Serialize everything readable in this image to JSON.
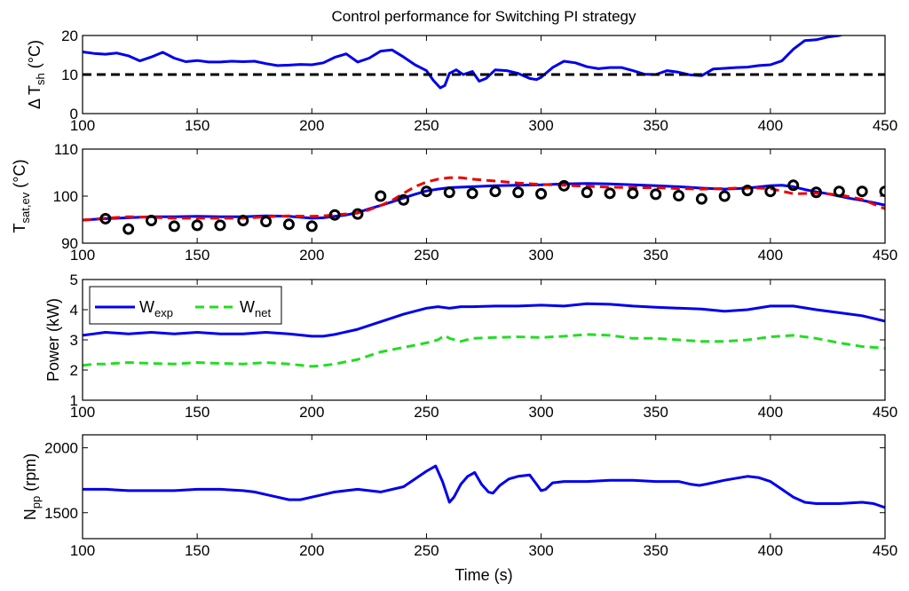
{
  "chart_data": [
    {
      "type": "line",
      "title": "Control performance for Switching PI strategy",
      "ylabel_base": "Δ T",
      "ylabel_sub": "sh",
      "ylabel_unit": " (°C)",
      "xlim": [
        100,
        450
      ],
      "ylim": [
        0,
        20
      ],
      "xticks": [
        100,
        150,
        200,
        250,
        300,
        350,
        400,
        450
      ],
      "yticks": [
        0,
        10,
        20
      ],
      "colors": {
        "series": "#0000ee",
        "reference": "#000000"
      },
      "series": [
        {
          "style": "solid",
          "x": [
            100,
            105,
            110,
            115,
            120,
            125,
            130,
            135,
            140,
            145,
            150,
            155,
            160,
            165,
            170,
            175,
            180,
            185,
            190,
            195,
            200,
            205,
            210,
            215,
            220,
            225,
            230,
            235,
            240,
            245,
            250,
            253,
            256,
            258,
            260,
            263,
            266,
            270,
            273,
            276,
            280,
            285,
            290,
            295,
            298,
            300,
            305,
            310,
            315,
            320,
            325,
            330,
            335,
            340,
            345,
            350,
            355,
            360,
            365,
            370,
            375,
            380,
            385,
            390,
            395,
            400,
            405,
            410,
            415,
            420,
            425,
            430,
            433
          ],
          "values": [
            15.8,
            15.4,
            15.2,
            15.5,
            14.8,
            13.5,
            14.5,
            15.7,
            14.2,
            13.3,
            13.6,
            13.2,
            13.2,
            13.4,
            13.3,
            13.4,
            12.8,
            12.3,
            12.4,
            12.6,
            12.5,
            13.0,
            14.4,
            15.3,
            13.2,
            14.2,
            16.0,
            16.3,
            14.5,
            12.5,
            11.0,
            8.5,
            6.6,
            7.2,
            10.3,
            11.2,
            10.0,
            10.8,
            8.3,
            9.0,
            11.2,
            11.0,
            10.3,
            9.0,
            8.7,
            9.3,
            11.8,
            13.4,
            13.0,
            12.0,
            11.5,
            11.8,
            11.8,
            11.0,
            10.1,
            10.0,
            11.0,
            10.6,
            9.9,
            9.7,
            11.4,
            11.6,
            11.8,
            11.9,
            12.3,
            12.5,
            13.5,
            16.5,
            18.7,
            18.9,
            19.6,
            20.0,
            20.5
          ]
        },
        {
          "style": "dashed",
          "x": [
            100,
            450
          ],
          "values": [
            10,
            10
          ]
        }
      ]
    },
    {
      "type": "line",
      "ylabel_base": "T",
      "ylabel_sub": "sat,ev",
      "ylabel_unit": " (°C)",
      "xlim": [
        100,
        450
      ],
      "ylim": [
        90,
        110
      ],
      "xticks": [
        100,
        150,
        200,
        250,
        300,
        350,
        400,
        450
      ],
      "yticks": [
        90,
        100,
        110
      ],
      "colors": {
        "solid": "#0000ee",
        "dashed": "#ee0000",
        "markers": "#000000"
      },
      "series": [
        {
          "style": "solid",
          "x": [
            100,
            110,
            120,
            130,
            140,
            150,
            160,
            170,
            180,
            190,
            200,
            205,
            210,
            215,
            220,
            225,
            230,
            235,
            240,
            245,
            250,
            255,
            260,
            270,
            280,
            290,
            300,
            310,
            320,
            330,
            340,
            350,
            360,
            370,
            380,
            390,
            400,
            405,
            410,
            415,
            420,
            425,
            430,
            435,
            440,
            445,
            450
          ],
          "values": [
            94.9,
            95.2,
            95.4,
            95.6,
            95.6,
            95.7,
            95.6,
            95.6,
            95.8,
            95.7,
            95.3,
            95.4,
            95.7,
            96.0,
            96.5,
            97.3,
            98.0,
            98.8,
            99.6,
            100.4,
            101.1,
            101.5,
            101.8,
            102.0,
            102.2,
            102.3,
            102.4,
            102.6,
            102.7,
            102.6,
            102.4,
            102.2,
            102.0,
            101.7,
            101.5,
            101.7,
            102.2,
            102.3,
            102.0,
            101.4,
            100.9,
            100.5,
            100.0,
            99.5,
            99.1,
            98.6,
            98.1
          ]
        },
        {
          "style": "dashed",
          "x": [
            100,
            110,
            120,
            130,
            140,
            150,
            160,
            170,
            180,
            190,
            200,
            205,
            210,
            215,
            220,
            225,
            230,
            235,
            240,
            245,
            250,
            255,
            260,
            265,
            270,
            280,
            290,
            300,
            310,
            320,
            330,
            340,
            350,
            360,
            370,
            380,
            390,
            400,
            410,
            420,
            430,
            440,
            450
          ],
          "values": [
            94.9,
            95.3,
            95.6,
            95.5,
            95.3,
            95.3,
            95.3,
            95.3,
            95.6,
            95.8,
            95.7,
            95.8,
            96.0,
            96.2,
            96.4,
            97.1,
            98.0,
            99.1,
            100.6,
            102.0,
            103.0,
            103.6,
            103.9,
            103.9,
            103.6,
            103.2,
            102.8,
            102.5,
            102.3,
            102.1,
            101.9,
            101.8,
            101.8,
            101.6,
            101.5,
            101.6,
            101.8,
            101.6,
            100.5,
            100.6,
            100.3,
            99.3,
            97.3
          ]
        },
        {
          "style": "circles",
          "x": [
            110,
            120,
            130,
            140,
            150,
            160,
            170,
            180,
            190,
            200,
            210,
            220,
            230,
            240,
            250,
            260,
            270,
            280,
            290,
            300,
            310,
            320,
            330,
            340,
            350,
            360,
            370,
            380,
            390,
            400,
            410,
            420,
            430,
            440,
            450
          ],
          "values": [
            95.2,
            93.0,
            94.8,
            93.6,
            93.8,
            93.8,
            94.8,
            94.6,
            94.0,
            93.6,
            96.0,
            96.2,
            100.0,
            99.2,
            101.0,
            100.8,
            100.6,
            101.0,
            100.8,
            100.5,
            102.2,
            100.8,
            100.6,
            100.6,
            100.4,
            100.1,
            99.4,
            100.0,
            101.2,
            101.0,
            102.3,
            100.8,
            101.0,
            101.0,
            101.0
          ]
        }
      ]
    },
    {
      "type": "line",
      "ylabel": "Power (kW)",
      "xlim": [
        100,
        450
      ],
      "ylim": [
        1,
        5
      ],
      "xticks": [
        100,
        150,
        200,
        250,
        300,
        350,
        400,
        450
      ],
      "yticks": [
        1,
        2,
        3,
        4,
        5
      ],
      "legend_position": "top-left",
      "colors": {
        "W_exp": "#0000ee",
        "W_net": "#22dd22"
      },
      "series": [
        {
          "name": "W",
          "name_sub": "exp",
          "style": "solid",
          "x": [
            100,
            105,
            110,
            120,
            130,
            140,
            150,
            160,
            170,
            180,
            190,
            200,
            205,
            210,
            220,
            230,
            240,
            250,
            255,
            260,
            265,
            270,
            280,
            290,
            300,
            310,
            320,
            330,
            340,
            350,
            360,
            370,
            380,
            390,
            400,
            410,
            420,
            430,
            440,
            450
          ],
          "values": [
            3.15,
            3.2,
            3.25,
            3.2,
            3.25,
            3.2,
            3.25,
            3.2,
            3.2,
            3.25,
            3.2,
            3.12,
            3.12,
            3.18,
            3.35,
            3.6,
            3.85,
            4.05,
            4.1,
            4.05,
            4.1,
            4.1,
            4.12,
            4.12,
            4.15,
            4.12,
            4.2,
            4.18,
            4.12,
            4.08,
            4.05,
            4.02,
            3.95,
            4.0,
            4.12,
            4.12,
            4.0,
            3.9,
            3.8,
            3.62
          ]
        },
        {
          "name": "W",
          "name_sub": "net",
          "style": "dashed",
          "x": [
            100,
            105,
            110,
            120,
            130,
            140,
            150,
            160,
            170,
            180,
            190,
            200,
            205,
            210,
            220,
            230,
            240,
            250,
            255,
            258,
            260,
            265,
            270,
            280,
            290,
            300,
            310,
            320,
            330,
            340,
            350,
            360,
            370,
            380,
            390,
            400,
            410,
            420,
            430,
            440,
            450
          ],
          "values": [
            2.15,
            2.2,
            2.2,
            2.25,
            2.22,
            2.2,
            2.25,
            2.22,
            2.2,
            2.25,
            2.2,
            2.12,
            2.15,
            2.2,
            2.35,
            2.6,
            2.75,
            2.9,
            3.0,
            3.15,
            3.05,
            2.95,
            3.05,
            3.08,
            3.1,
            3.08,
            3.12,
            3.18,
            3.15,
            3.05,
            3.05,
            3.0,
            2.95,
            2.95,
            3.0,
            3.1,
            3.15,
            3.05,
            2.9,
            2.78,
            2.72
          ]
        }
      ]
    },
    {
      "type": "line",
      "xlabel": "Time (s)",
      "ylabel_base": "N",
      "ylabel_sub": "pp",
      "ylabel_unit": " (rpm)",
      "xlim": [
        100,
        450
      ],
      "ylim": [
        1300,
        2100
      ],
      "xticks": [
        100,
        150,
        200,
        250,
        300,
        350,
        400,
        450
      ],
      "yticks": [
        1500,
        2000
      ],
      "colors": {
        "series": "#0000ee"
      },
      "series": [
        {
          "style": "solid",
          "x": [
            100,
            110,
            120,
            130,
            140,
            150,
            160,
            170,
            175,
            180,
            185,
            190,
            195,
            200,
            205,
            210,
            220,
            230,
            240,
            245,
            250,
            254,
            257,
            260,
            262,
            265,
            268,
            271,
            274,
            277,
            279,
            282,
            286,
            290,
            295,
            298,
            300,
            302,
            305,
            310,
            320,
            330,
            340,
            350,
            360,
            365,
            369,
            372,
            380,
            390,
            395,
            400,
            405,
            410,
            415,
            420,
            430,
            440,
            445,
            450
          ],
          "values": [
            1680,
            1680,
            1670,
            1670,
            1670,
            1680,
            1680,
            1670,
            1660,
            1640,
            1620,
            1600,
            1600,
            1620,
            1640,
            1660,
            1680,
            1660,
            1700,
            1760,
            1820,
            1860,
            1740,
            1580,
            1620,
            1720,
            1780,
            1810,
            1720,
            1660,
            1650,
            1710,
            1760,
            1780,
            1790,
            1720,
            1670,
            1680,
            1730,
            1740,
            1740,
            1750,
            1750,
            1740,
            1740,
            1720,
            1710,
            1720,
            1750,
            1780,
            1770,
            1740,
            1680,
            1620,
            1580,
            1570,
            1570,
            1580,
            1570,
            1540
          ]
        }
      ]
    }
  ]
}
